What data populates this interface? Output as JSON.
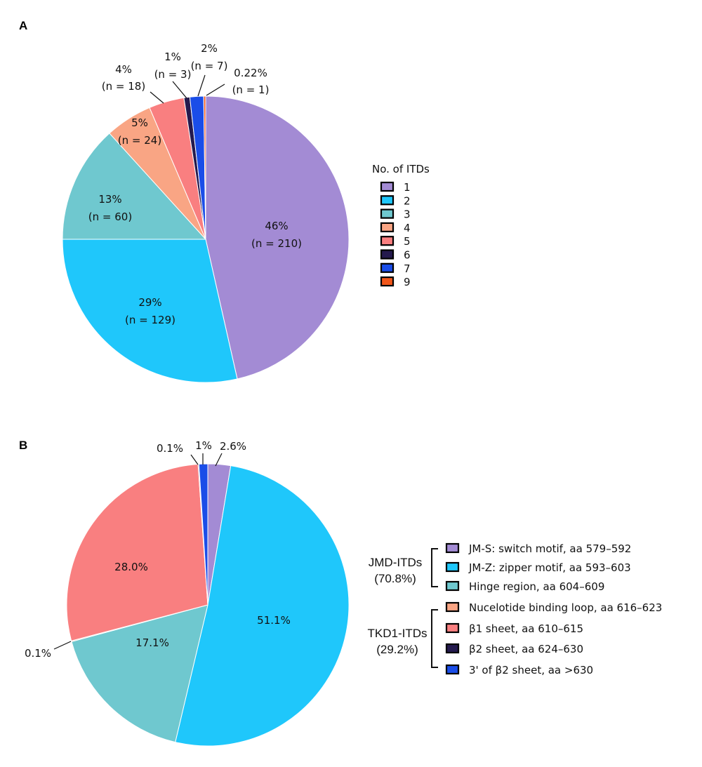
{
  "chart_data": [
    {
      "type": "pie",
      "panel_label": "A",
      "legend_title": "No. of ITDs",
      "legend_position": "right",
      "slices": [
        {
          "category": "1",
          "percent": 46,
          "n": 210,
          "label_pct": "46%",
          "label_n": "(n = 210)",
          "color": "#a38bd4"
        },
        {
          "category": "2",
          "percent": 29,
          "n": 129,
          "label_pct": "29%",
          "label_n": "(n = 129)",
          "color": "#1fc7fb"
        },
        {
          "category": "3",
          "percent": 13,
          "n": 60,
          "label_pct": "13%",
          "label_n": "(n = 60)",
          "color": "#6fc8cf"
        },
        {
          "category": "4",
          "percent": 5,
          "n": 24,
          "label_pct": "5%",
          "label_n": "(n = 24)",
          "color": "#f9a584"
        },
        {
          "category": "5",
          "percent": 4,
          "n": 18,
          "label_pct": "4%",
          "label_n": "(n = 18)",
          "color": "#f97f80"
        },
        {
          "category": "6",
          "percent": 1,
          "n": 3,
          "label_pct": "1%",
          "label_n": "(n = 3)",
          "color": "#241a4e"
        },
        {
          "category": "7",
          "percent": 2,
          "n": 7,
          "label_pct": "2%",
          "label_n": "(n = 7)",
          "color": "#1a4de8"
        },
        {
          "category": "9",
          "percent": 0.22,
          "n": 1,
          "label_pct": "0.22%",
          "label_n": "(n = 1)",
          "color": "#f0561a"
        }
      ]
    },
    {
      "type": "pie",
      "panel_label": "B",
      "legend_position": "right",
      "groups": [
        {
          "name": "JMD-ITDs",
          "total": "(70.8%)"
        },
        {
          "name": "TKD1-ITDs",
          "total": "(29.2%)"
        }
      ],
      "legend": [
        {
          "label": "JM-S: switch motif, aa 579–592",
          "color": "#a38bd4",
          "group": "JMD-ITDs"
        },
        {
          "label": "JM-Z: zipper motif, aa 593–603",
          "color": "#1fc7fb",
          "group": "JMD-ITDs"
        },
        {
          "label": "Hinge region, aa 604–609",
          "color": "#6fc8cf",
          "group": "JMD-ITDs"
        },
        {
          "label": "Nucelotide binding loop, aa 616–623",
          "color": "#f9a584",
          "group": "TKD1-ITDs"
        },
        {
          "label": "β1 sheet, aa 610–615",
          "color": "#f97f80",
          "group": "TKD1-ITDs"
        },
        {
          "label": "β2 sheet, aa 624–630",
          "color": "#241a4e",
          "group": "TKD1-ITDs"
        },
        {
          "label": "3' of β2 sheet, aa >630",
          "color": "#1a4de8",
          "group": "TKD1-ITDs"
        }
      ],
      "slices": [
        {
          "category": "JM-S",
          "percent": 2.6,
          "label": "2.6%",
          "color": "#a38bd4"
        },
        {
          "category": "JM-Z",
          "percent": 51.1,
          "label": "51.1%",
          "color": "#1fc7fb"
        },
        {
          "category": "Hinge",
          "percent": 17.1,
          "label": "17.1%",
          "color": "#6fc8cf"
        },
        {
          "category": "Nucelotide binding loop",
          "percent": 0.1,
          "label": "0.1%",
          "color": "#f9a584"
        },
        {
          "category": "β1 sheet",
          "percent": 28.0,
          "label": "28.0%",
          "color": "#f97f80"
        },
        {
          "category": "β2 sheet",
          "percent": 0.1,
          "label": "0.1%",
          "color": "#241a4e"
        },
        {
          "category": "3' of β2 sheet",
          "percent": 1,
          "label": "1%",
          "color": "#1a4de8"
        }
      ]
    }
  ]
}
